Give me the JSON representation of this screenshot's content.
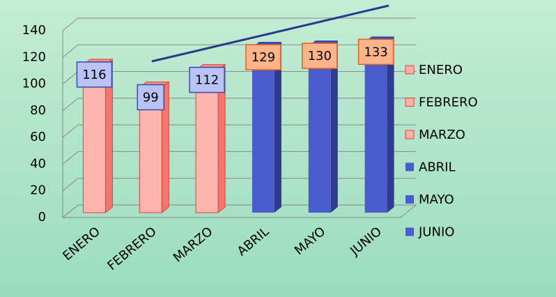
{
  "chart_data": {
    "type": "bar",
    "categories": [
      "ENERO",
      "FEBRERO",
      "MARZO",
      "ABRIL",
      "MAYO",
      "JUNIO"
    ],
    "values": [
      116,
      99,
      112,
      129,
      130,
      133
    ],
    "colors": [
      "#ff8a80",
      "#ff8a80",
      "#ff8a80",
      "#4a5ccc",
      "#4a5ccc",
      "#4a5ccc"
    ],
    "label_colors": [
      "#b9c3f5",
      "#b9c3f5",
      "#b9c3f5",
      "#ffb48a",
      "#ffb48a",
      "#ffb48a"
    ],
    "ylim": [
      0,
      140
    ],
    "yticks": [
      0,
      20,
      40,
      60,
      80,
      100,
      120,
      140
    ],
    "grid": true,
    "legend": "right"
  }
}
